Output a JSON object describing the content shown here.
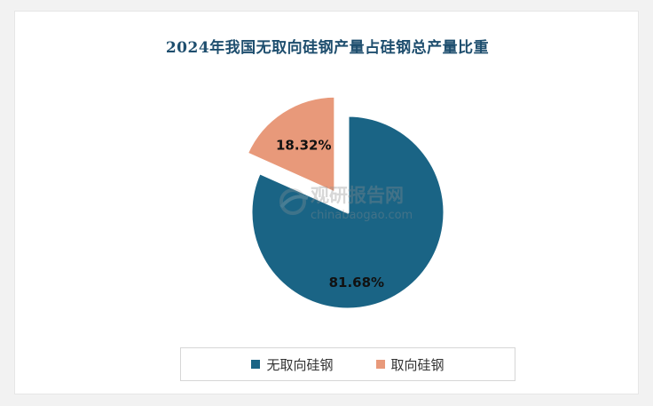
{
  "chart_data": {
    "type": "pie",
    "title": "2024年我国无取向硅钢产量占硅钢总产量比重",
    "slices": [
      {
        "label": "无取向硅钢",
        "value": 81.68,
        "display": "81.68%",
        "color": "#1a6485",
        "exploded": false
      },
      {
        "label": "取向硅钢",
        "value": 18.32,
        "display": "18.32%",
        "color": "#e8997a",
        "exploded": true
      }
    ],
    "legend_position": "bottom"
  },
  "watermark": {
    "brand": "观研报告网",
    "url": "chinabaogao.com"
  },
  "colors": {
    "title": "#1e4e6e"
  }
}
